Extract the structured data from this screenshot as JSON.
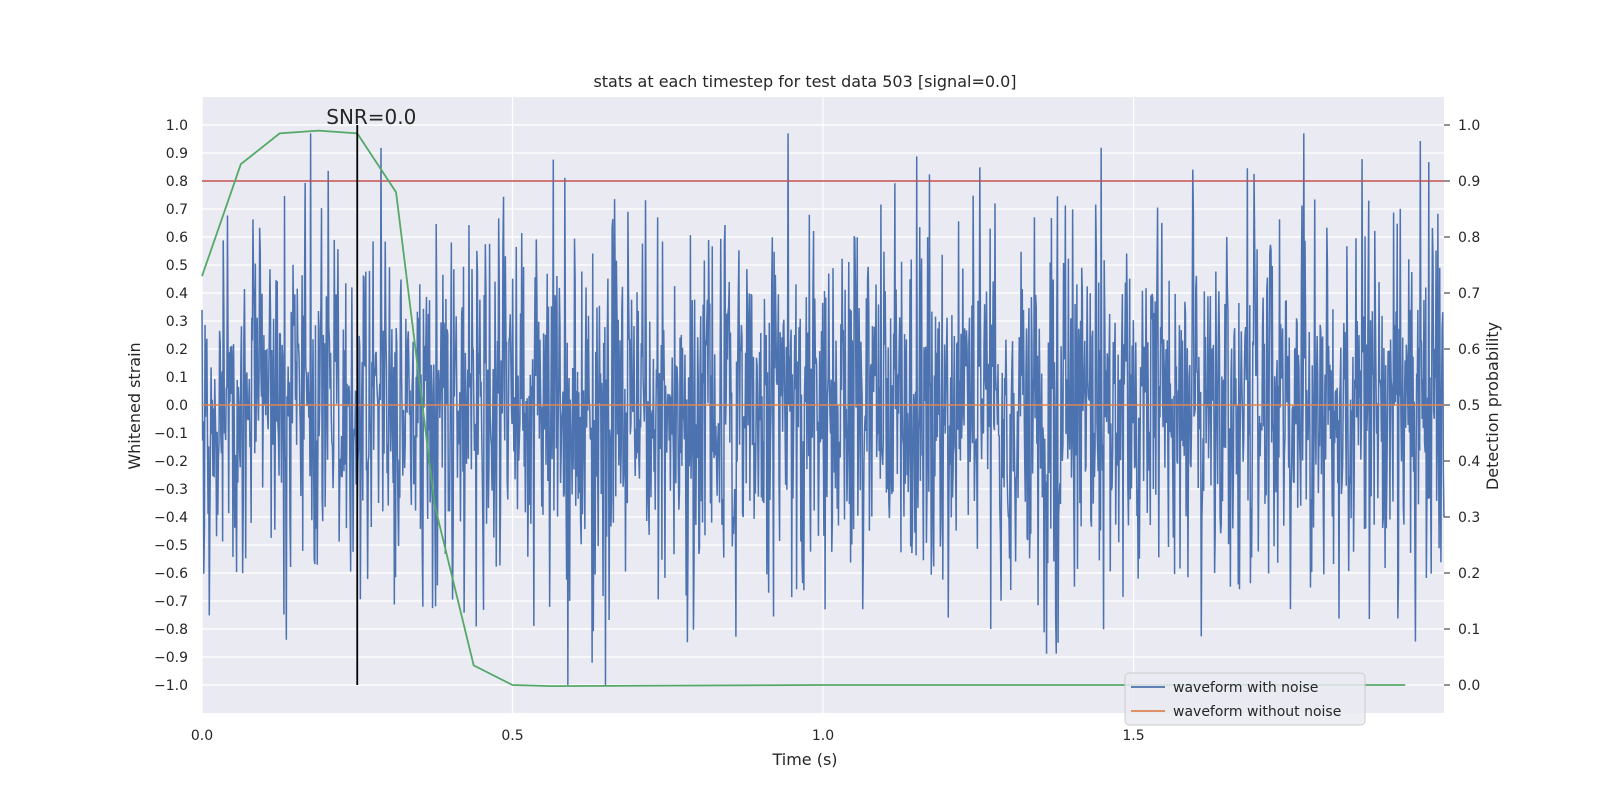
{
  "chart_data": {
    "type": "line",
    "title": "stats at each timestep for test data 503 [signal=0.0]",
    "xlabel": "Time (s)",
    "ylabel": "Whitened strain",
    "y2label": "Detection probability",
    "xlim": [
      0.0,
      2.0
    ],
    "ylim": [
      -1.1,
      1.1
    ],
    "y2lim": [
      -0.05,
      1.05
    ],
    "xticks": [
      0.0,
      0.5,
      1.0,
      1.5
    ],
    "xtick_labels": [
      "0.0",
      "0.5",
      "1.0",
      "1.5"
    ],
    "yticks": [
      -1.0,
      -0.9,
      -0.8,
      -0.7,
      -0.6,
      -0.5,
      -0.4,
      -0.3,
      -0.2,
      -0.1,
      0.0,
      0.1,
      0.2,
      0.3,
      0.4,
      0.5,
      0.6,
      0.7,
      0.8,
      0.9,
      1.0
    ],
    "ytick_labels": [
      "−1.0",
      "−0.9",
      "−0.8",
      "−0.7",
      "−0.6",
      "−0.5",
      "−0.4",
      "−0.3",
      "−0.2",
      "−0.1",
      "0.0",
      "0.1",
      "0.2",
      "0.3",
      "0.4",
      "0.5",
      "0.6",
      "0.7",
      "0.8",
      "0.9",
      "1.0"
    ],
    "y2ticks": [
      0.0,
      0.1,
      0.2,
      0.3,
      0.4,
      0.5,
      0.6,
      0.7,
      0.8,
      0.9,
      1.0
    ],
    "y2tick_labels": [
      "0.0",
      "0.1",
      "0.2",
      "0.3",
      "0.4",
      "0.5",
      "0.6",
      "0.7",
      "0.8",
      "0.9",
      "1.0"
    ],
    "grid": true,
    "legend_position": "bottom-right",
    "annotation": {
      "text": "SNR=0.0",
      "x": 0.25
    },
    "series": [
      {
        "name": "waveform with noise",
        "color": "#4c72b0",
        "kind": "noise",
        "n_samples": 2048,
        "dt": 0.000977,
        "std": 0.32,
        "clip": [
          -1.0,
          0.97
        ],
        "seed": 503
      },
      {
        "name": "waveform without noise",
        "color": "#dd8452",
        "x": [
          0.0,
          2.0
        ],
        "y": [
          0.0,
          0.0
        ]
      }
    ],
    "detection_probability": {
      "color": "#55a868",
      "x": [
        0.0,
        0.0625,
        0.125,
        0.1875,
        0.25,
        0.3125,
        0.375,
        0.4375,
        0.5,
        0.5625,
        1.0,
        1.5,
        1.9375
      ],
      "y": [
        0.73,
        0.93,
        0.985,
        0.99,
        0.985,
        0.88,
        0.32,
        0.035,
        0.0,
        -0.002,
        0.0,
        0.0,
        0.0
      ]
    },
    "threshold": {
      "value": 0.9,
      "axis": "right",
      "color": "#c44e52"
    },
    "vertical_marker": {
      "x": 0.25,
      "y_range": [
        -1.0,
        1.0
      ],
      "color": "#000000"
    }
  }
}
